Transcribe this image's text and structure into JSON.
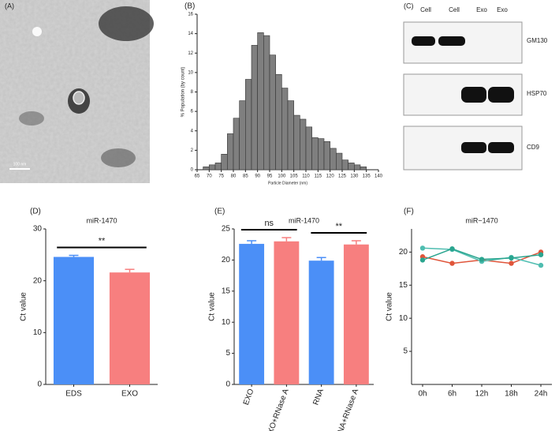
{
  "panels": {
    "A": {
      "label": "(A)",
      "scale": "100 nm"
    },
    "C": {
      "label": "(C)",
      "lanes": [
        "Cell",
        "Cell",
        "Exo",
        "Exo"
      ],
      "blots": [
        "GM130",
        "HSP70",
        "CD9"
      ]
    }
  },
  "chart_data": [
    {
      "type": "histogram",
      "panel": "(B)",
      "xlabel": "Particle Diameter (nm)",
      "ylabel": "% Population (by count)",
      "bins": [
        67.5,
        70,
        72.5,
        75,
        77.5,
        80,
        82.5,
        85,
        87.5,
        90,
        92.5,
        95,
        97.5,
        100,
        102.5,
        105,
        107.5,
        110,
        112.5,
        115,
        117.5,
        120,
        122.5,
        125,
        127.5,
        130,
        132.5,
        135
      ],
      "values": [
        0.3,
        0.5,
        0.7,
        1.6,
        3.7,
        5.3,
        7.1,
        9.3,
        12.8,
        14.1,
        13.8,
        11.8,
        9.8,
        8.4,
        7.1,
        5.6,
        5.2,
        4.4,
        3.3,
        3.2,
        2.9,
        2.2,
        1.7,
        1.0,
        0.7,
        0.5,
        0.3
      ],
      "color": "#7f7f7f",
      "xlim": [
        65,
        140
      ],
      "xticks": [
        65,
        70,
        75,
        80,
        85,
        90,
        95,
        100,
        105,
        110,
        115,
        120,
        125,
        130,
        135,
        140
      ],
      "ylim": [
        0,
        16
      ],
      "yticks": [
        0,
        2,
        4,
        6,
        8,
        10,
        12,
        14,
        16
      ]
    },
    {
      "type": "bar",
      "panel": "(D)",
      "title": "miR-1470",
      "ylabel": "Ct value",
      "categories": [
        "EDS",
        "EXO"
      ],
      "values": [
        24.6,
        21.6
      ],
      "errors": [
        0.3,
        0.6
      ],
      "colors": [
        "#4b8ff7",
        "#f77f7f"
      ],
      "annotations": [
        "**"
      ],
      "ylim": [
        0,
        30
      ],
      "yticks": [
        0,
        10,
        20,
        30
      ]
    },
    {
      "type": "bar",
      "panel": "(E)",
      "title": "miR-1470",
      "ylabel": "Ct value",
      "categories": [
        "EXO",
        "EXO+RNase A",
        "RNA",
        "RNA+RNase A"
      ],
      "values": [
        22.6,
        23.0,
        19.9,
        22.5
      ],
      "errors": [
        0.5,
        0.6,
        0.5,
        0.6
      ],
      "colors": [
        "#4b8ff7",
        "#f77f7f",
        "#4b8ff7",
        "#f77f7f"
      ],
      "annotations": [
        "ns",
        "**"
      ],
      "ylim": [
        0,
        25
      ],
      "yticks": [
        0,
        5,
        10,
        15,
        20,
        25
      ]
    },
    {
      "type": "line",
      "panel": "(F)",
      "title": "miR−1470",
      "ylabel": "Ct value",
      "categories": [
        "0h",
        "6h",
        "12h",
        "18h",
        "24h"
      ],
      "series": [
        {
          "color": "#e0553a",
          "values": [
            19.3,
            18.3,
            18.8,
            18.3,
            20.0
          ]
        },
        {
          "color": "#4fbdb0",
          "values": [
            20.6,
            20.4,
            18.6,
            19.2,
            18.0
          ]
        },
        {
          "color": "#2aa58f",
          "values": [
            18.8,
            20.5,
            18.9,
            19.1,
            19.6
          ]
        }
      ],
      "ylim": [
        0,
        23.5
      ],
      "yticks": [
        5,
        10,
        15,
        20
      ]
    }
  ]
}
